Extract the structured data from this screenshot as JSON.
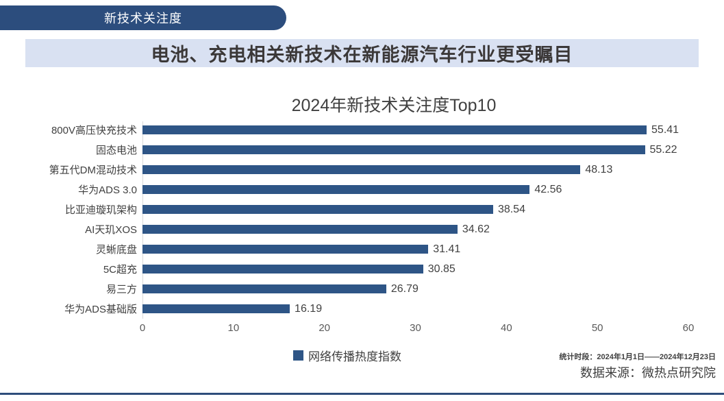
{
  "header": {
    "tab_label": "新技术关注度",
    "banner_title": "电池、充电相关新技术在新能源汽车行业更受瞩目"
  },
  "chart_data": {
    "type": "bar",
    "orientation": "horizontal",
    "title": "2024年新技术关注度Top10",
    "categories": [
      "800V高压快充技术",
      "固态电池",
      "第五代DM混动技术",
      "华为ADS 3.0",
      "比亚迪璇玑架构",
      "AI天玑XOS",
      "灵蜥底盘",
      "5C超充",
      "易三方",
      "华为ADS基础版"
    ],
    "values": [
      55.41,
      55.22,
      48.13,
      42.56,
      38.54,
      34.62,
      31.41,
      30.85,
      26.79,
      16.19
    ],
    "xlabel": "",
    "ylabel": "",
    "xlim": [
      0,
      60
    ],
    "x_ticks": [
      0,
      10,
      20,
      30,
      40,
      50,
      60
    ],
    "grid": false,
    "legend": {
      "label": "网络传播热度指数",
      "position": "bottom"
    },
    "bar_color": "#2E5586"
  },
  "footer": {
    "stats_period": "统计时段：2024年1月1日——2024年12月23日",
    "data_source": "数据来源：微热点研究院"
  },
  "colors": {
    "tab_bg": "#2C4D7D",
    "banner_bg": "#D9E1F2",
    "bar": "#2E5586",
    "text": "#404040",
    "tick": "#595959",
    "bottom_line": "#2E4D7B"
  }
}
